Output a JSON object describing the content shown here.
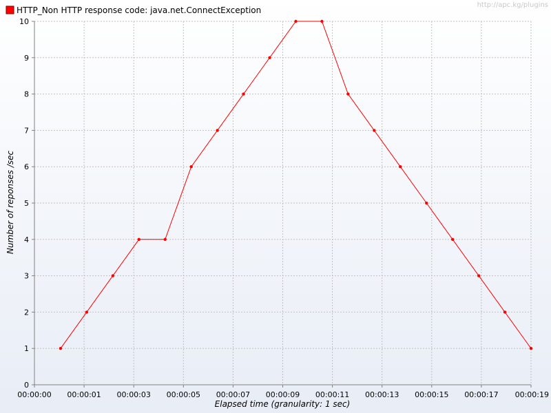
{
  "chart_data": {
    "type": "line",
    "xlabel": "Elapsed time (granularity: 1 sec)",
    "ylabel": "Number of reponses /sec",
    "x_tick_labels": [
      "00:00:00",
      "00:00:01",
      "00:00:03",
      "00:00:05",
      "00:00:07",
      "00:00:09",
      "00:00:11",
      "00:00:13",
      "00:00:15",
      "00:00:17",
      "00:00:19"
    ],
    "x_tick_seconds": [
      0,
      1.9,
      3.8,
      5.7,
      7.6,
      9.5,
      11.4,
      13.3,
      15.2,
      17.1,
      19.0
    ],
    "xlim_seconds": [
      0,
      19.0
    ],
    "ylim": [
      0,
      10
    ],
    "y_ticks": [
      0,
      1,
      2,
      3,
      4,
      5,
      6,
      7,
      8,
      9,
      10
    ],
    "grid": true,
    "legend_position": "top-left",
    "series": [
      {
        "name": "HTTP_Non HTTP response code: java.net.ConnectException",
        "color": "#ff0000",
        "x_seconds": [
          1,
          2,
          3,
          4,
          5,
          6,
          7,
          8,
          9,
          10,
          11,
          12,
          13,
          14,
          15,
          16,
          17,
          18,
          19
        ],
        "y": [
          1,
          2,
          3,
          4,
          4,
          6,
          7,
          8,
          9,
          10,
          10,
          8,
          7,
          6,
          5,
          4,
          3,
          2,
          1
        ]
      }
    ]
  },
  "watermark": "http://apc.kg/plugins",
  "colors": {
    "series": "#ff0000",
    "grid": "#c0c0c0",
    "bg_top": "#ffffff",
    "bg_bottom": "#e8edf6"
  }
}
